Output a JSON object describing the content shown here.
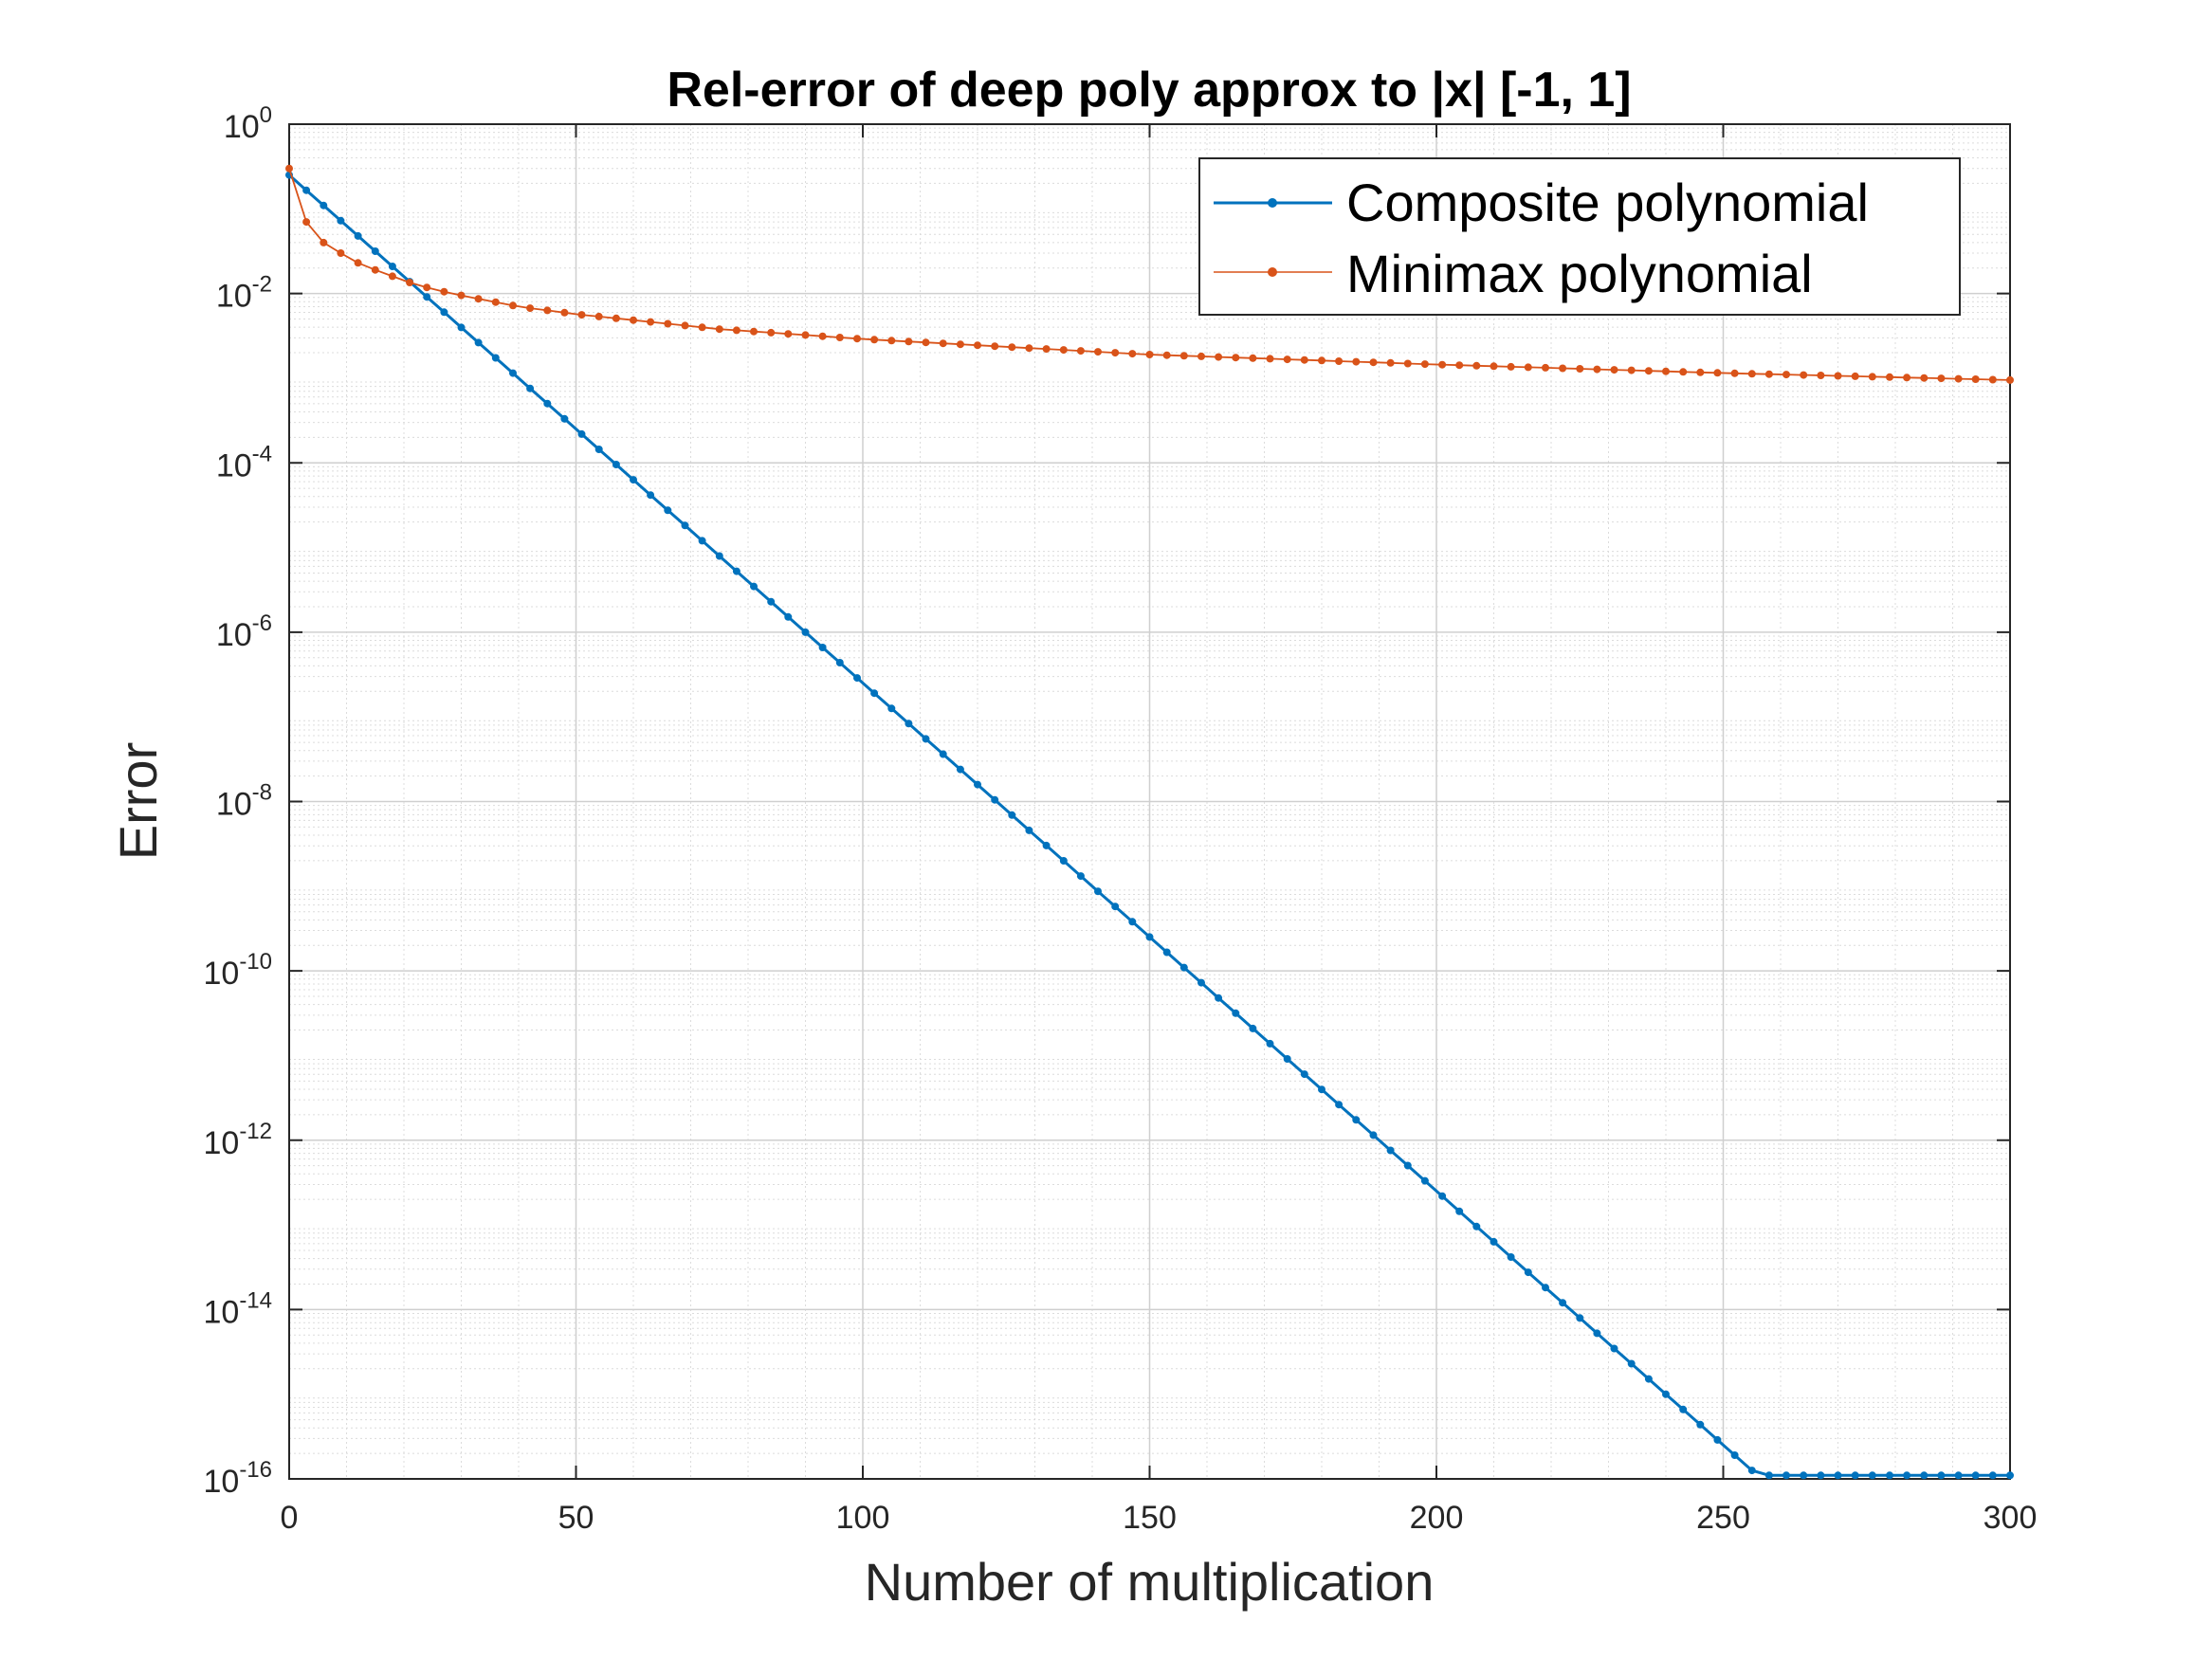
{
  "chart_data": {
    "type": "line",
    "title": "Rel-error of deep poly approx to |x| [-1, 1]",
    "xlabel": "Number of multiplication",
    "ylabel": "Error",
    "xscale": "linear",
    "yscale": "log",
    "xlim": [
      0,
      300
    ],
    "ylim": [
      1e-16,
      1
    ],
    "xticks": [
      "0",
      "50",
      "100",
      "150",
      "200",
      "250",
      "300"
    ],
    "ytick_base": "10",
    "ytick_exponents": [
      "0",
      "-2",
      "-4",
      "-6",
      "-8",
      "-10",
      "-12",
      "-14",
      "-16"
    ],
    "grid": true,
    "minor_grid": true,
    "legend_position": "top-right",
    "series": [
      {
        "name": "Composite polynomial",
        "color": "#0072BD",
        "marker": "dot",
        "x_start": 0,
        "x_step": 3,
        "log10_start": -0.6,
        "log10_slope_per_step": -0.18,
        "floor_start_x": 258,
        "floor_value": 1.1e-16
      },
      {
        "name": "Minimax polynomial",
        "color": "#D95319",
        "marker": "dot",
        "points": [
          [
            0,
            0.3
          ],
          [
            3,
            0.07
          ],
          [
            6,
            0.04
          ],
          [
            9,
            0.03
          ],
          [
            12,
            0.023
          ],
          [
            15,
            0.019
          ],
          [
            18,
            0.016
          ],
          [
            21,
            0.0135
          ],
          [
            24,
            0.0118
          ],
          [
            27,
            0.0105
          ],
          [
            30,
            0.0095
          ],
          [
            40,
            0.007
          ],
          [
            50,
            0.0057
          ],
          [
            75,
            0.0038
          ],
          [
            100,
            0.0029
          ],
          [
            150,
            0.0019
          ],
          [
            200,
            0.00145
          ],
          [
            250,
            0.00115
          ],
          [
            300,
            0.00095
          ]
        ],
        "x_step": 3
      }
    ]
  }
}
